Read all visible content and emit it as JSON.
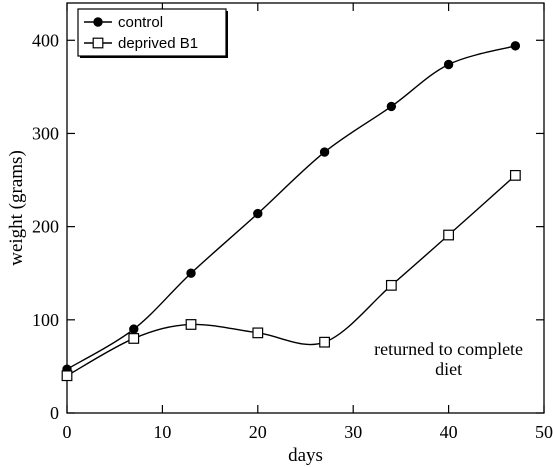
{
  "chart_data": {
    "type": "line",
    "xlabel": "days",
    "ylabel": "weight (grams)",
    "xlim": [
      0,
      50
    ],
    "ylim": [
      0,
      440
    ],
    "xticks": [
      0,
      10,
      20,
      30,
      40,
      50
    ],
    "yticks": [
      0,
      100,
      200,
      300,
      400
    ],
    "grid": false,
    "legend_position": "top-left",
    "series": [
      {
        "name": "control",
        "marker": "filled-circle",
        "color": "#000000",
        "points": [
          [
            0,
            47
          ],
          [
            7,
            90
          ],
          [
            13,
            150
          ],
          [
            20,
            214
          ],
          [
            27,
            280
          ],
          [
            34,
            329
          ],
          [
            40,
            374
          ],
          [
            47,
            394
          ]
        ]
      },
      {
        "name": "deprived B1",
        "marker": "open-square",
        "color": "#000000",
        "points": [
          [
            0,
            40
          ],
          [
            7,
            80
          ],
          [
            13,
            95
          ],
          [
            20,
            86
          ],
          [
            27,
            76
          ],
          [
            34,
            137
          ],
          [
            40,
            191
          ],
          [
            47,
            255
          ]
        ]
      }
    ],
    "annotations": [
      {
        "text_lines": [
          "returned to complete",
          "diet"
        ],
        "x": 40,
        "y": 62
      }
    ]
  }
}
